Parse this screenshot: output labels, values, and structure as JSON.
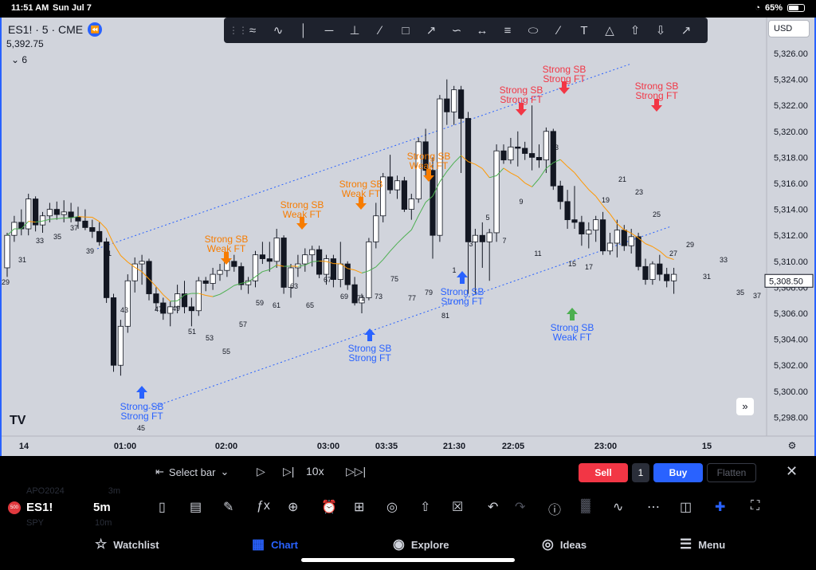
{
  "status": {
    "time": "11:51 AM",
    "date": "Sun Jul 7",
    "battery": "65%"
  },
  "symbol": {
    "title": "ES1! · 5 · CME",
    "price": "5,392.75",
    "indicator_count": "6",
    "currency": "USD"
  },
  "price_axis": {
    "labels": [
      "5,326.00",
      "5,324.00",
      "5,322.00",
      "5,320.00",
      "5,318.00",
      "5,316.00",
      "5,314.00",
      "5,312.00",
      "5,310.00",
      "5,308.00",
      "5,306.00",
      "5,304.00",
      "5,302.00",
      "5,300.00",
      "5,298.00"
    ],
    "current": "5,308.50"
  },
  "time_axis": [
    "14",
    "01:00",
    "02:00",
    "03:00",
    "03:35",
    "21:30",
    "22:05",
    "23:00",
    "15"
  ],
  "annotations": [
    {
      "text1": "Strong SB",
      "text2": "Strong FT",
      "color": "#2962ff",
      "dir": "up"
    },
    {
      "text1": "Strong SB",
      "text2": "Weak FT",
      "color": "#f77c00",
      "dir": "down"
    },
    {
      "text1": "Strong SB",
      "text2": "Weak FT",
      "color": "#f77c00",
      "dir": "down"
    },
    {
      "text1": "Strong SB",
      "text2": "Weak FT",
      "color": "#f77c00",
      "dir": "down"
    },
    {
      "text1": "Strong SB",
      "text2": "Strong FT",
      "color": "#2962ff",
      "dir": "up"
    },
    {
      "text1": "Strong SB",
      "text2": "Weak FT",
      "color": "#f77c00",
      "dir": "down"
    },
    {
      "text1": "Strong SB",
      "text2": "Strong FT",
      "color": "#2962ff",
      "dir": "up"
    },
    {
      "text1": "Strong SB",
      "text2": "Strong FT",
      "color": "#f23645",
      "dir": "down"
    },
    {
      "text1": "Strong SB",
      "text2": "Strong FT",
      "color": "#f23645",
      "dir": "down"
    },
    {
      "text1": "Strong SB",
      "text2": "Weak FT",
      "color": "#2962ff",
      "dir": "up"
    },
    {
      "text1": "Strong SB",
      "text2": "Strong FT",
      "color": "#f23645",
      "dir": "down"
    }
  ],
  "bar_numbers": [
    "29",
    "31",
    "33",
    "35",
    "37",
    "39",
    "41",
    "43",
    "45",
    "47",
    "49",
    "51",
    "53",
    "55",
    "57",
    "59",
    "61",
    "63",
    "65",
    "67",
    "69",
    "71",
    "73",
    "75",
    "77",
    "79",
    "81",
    "1",
    "3",
    "5",
    "7",
    "9",
    "11",
    "13",
    "15",
    "17",
    "19",
    "21",
    "23",
    "25",
    "27",
    "29",
    "31",
    "33",
    "35",
    "37"
  ],
  "replay": {
    "select_bar": "Select bar",
    "speed": "10x"
  },
  "trade": {
    "sell": "Sell",
    "qty": "1",
    "buy": "Buy",
    "flatten": "Flatten"
  },
  "toolbar2": {
    "ghost1": "APO2024",
    "ghost1b": "3m",
    "symbol": "ES1!",
    "interval": "5m",
    "ghost2": "SPY",
    "ghost2b": "10m",
    "logo": "500"
  },
  "tabs": [
    {
      "label": "Watchlist"
    },
    {
      "label": "Chart"
    },
    {
      "label": "Explore"
    },
    {
      "label": "Ideas"
    },
    {
      "label": "Menu"
    }
  ],
  "colors": {
    "chart_bg": "#d1d4dc",
    "accent": "#2962ff",
    "sell": "#f23645",
    "orange": "#f77c00"
  }
}
